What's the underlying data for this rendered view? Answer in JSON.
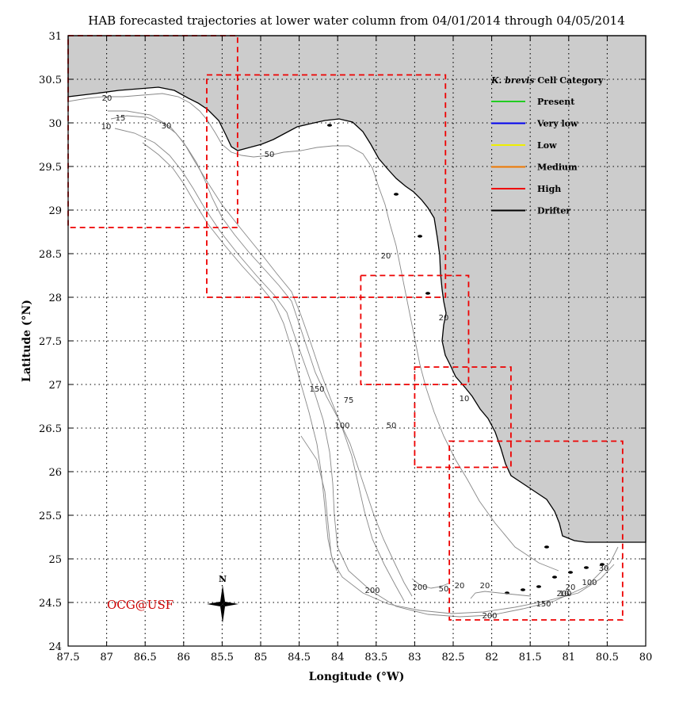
{
  "title": "HAB forecasted trajectories at lower water column from 04/01/2014 through 04/05/2014",
  "x_axis": {
    "label": "Longitude (°W)",
    "ticks": [
      "87.5",
      "87",
      "86.5",
      "86",
      "85.5",
      "85",
      "84.5",
      "84",
      "83.5",
      "83",
      "82.5",
      "82",
      "81.5",
      "81",
      "80.5",
      "80"
    ],
    "range": [
      87.5,
      80
    ]
  },
  "y_axis": {
    "label": "Latitude (°N)",
    "ticks": [
      "31",
      "30.5",
      "30",
      "29.5",
      "29",
      "28.5",
      "28",
      "27.5",
      "27",
      "26.5",
      "26",
      "25.5",
      "25",
      "24.5",
      "24"
    ],
    "range": [
      24,
      31
    ]
  },
  "legend": {
    "title_italic": "K. brevis",
    "title_rest": " Cell Category",
    "items": [
      {
        "label": "Present",
        "color": "#22cc22"
      },
      {
        "label": "Very low",
        "color": "#0000ee"
      },
      {
        "label": "Low",
        "color": "#eeee00"
      },
      {
        "label": "Medium",
        "color": "#ee7700"
      },
      {
        "label": "High",
        "color": "#ee0000"
      },
      {
        "label": "Drifter",
        "color": "#000000"
      }
    ]
  },
  "watermark": "OCG@USF",
  "compass_label": "N",
  "contour_labels": [
    "20",
    "10",
    "30",
    "50",
    "15",
    "20",
    "20",
    "150",
    "75",
    "100",
    "50",
    "10",
    "200",
    "200",
    "20",
    "20",
    "30",
    "200",
    "150",
    "100",
    "20",
    "50",
    "10",
    "200"
  ],
  "colors": {
    "land": "#cccccc",
    "forecast_box": "#ee0000",
    "grid": "#000000",
    "contour": "#888888"
  },
  "chart_data": {
    "type": "map",
    "projection": "lon-lat",
    "xlim": [
      -87.5,
      -80
    ],
    "ylim": [
      24,
      31
    ],
    "grid": true,
    "legend_position": "top-right",
    "forecast_boxes": [
      {
        "lon_w": 87.5,
        "lon_e": 85.3,
        "lat_s": 28.8,
        "lat_n": 31.0
      },
      {
        "lon_w": 85.7,
        "lon_e": 82.6,
        "lat_s": 28.0,
        "lat_n": 30.55
      },
      {
        "lon_w": 83.7,
        "lon_e": 82.3,
        "lat_s": 27.0,
        "lat_n": 28.25
      },
      {
        "lon_w": 83.0,
        "lon_e": 81.75,
        "lat_s": 26.05,
        "lat_n": 27.2
      },
      {
        "lon_w": 82.55,
        "lon_e": 80.3,
        "lat_s": 24.3,
        "lat_n": 26.35
      }
    ]
  }
}
